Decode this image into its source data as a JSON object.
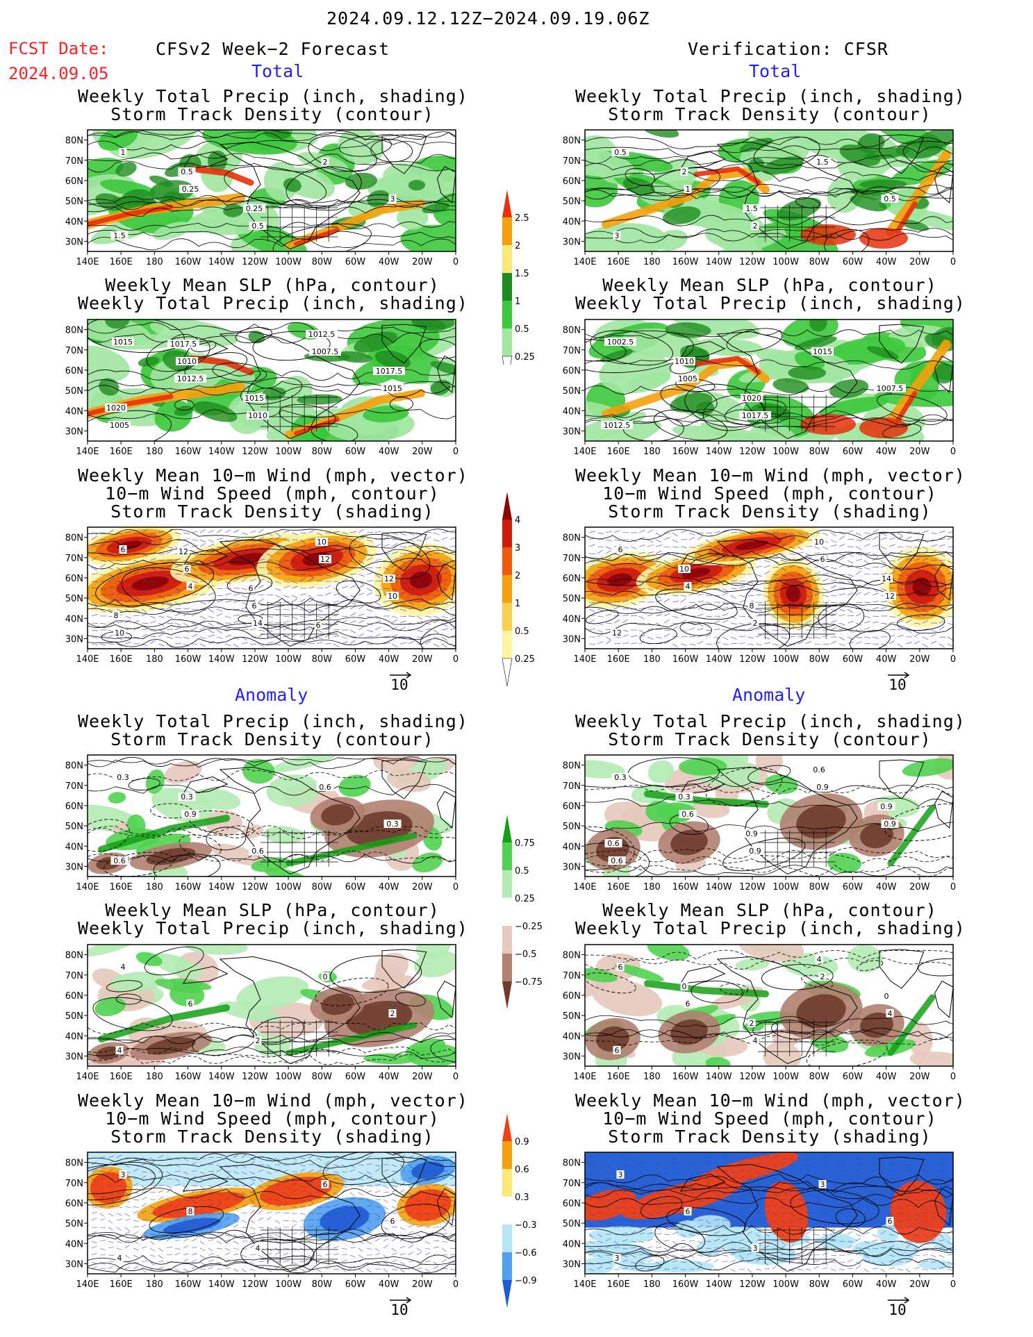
{
  "header": {
    "date_range": "2024.09.12.12Z−2024.09.19.06Z",
    "fcst_label": "FCST Date:",
    "fcst_date": "2024.09.05",
    "left_title": "CFSv2 Week−2 Forecast",
    "right_title": "Verification: CFSR"
  },
  "sections": {
    "total": "Total",
    "anomaly": "Anomaly"
  },
  "panel_titles": {
    "precip_storm": [
      "Weekly Total Precip (inch, shading)",
      "Storm Track Density (contour)"
    ],
    "slp_precip": [
      "Weekly Mean SLP (hPa, contour)",
      "Weekly Total Precip (inch, shading)"
    ],
    "wind_storm": [
      "Weekly Mean 10−m Wind (mph, vector)",
      "10−m Wind Speed (mph, contour)",
      "Storm Track Density (shading)"
    ]
  },
  "axes": {
    "lat_labels": [
      "80N",
      "70N",
      "60N",
      "50N",
      "40N",
      "30N"
    ],
    "lon_labels": [
      "140E",
      "160E",
      "180",
      "160W",
      "140W",
      "120W",
      "100W",
      "80W",
      "60W",
      "40W",
      "20W",
      "0"
    ]
  },
  "vector_reference": "10",
  "colorbars": {
    "precip_total": {
      "labels": [
        "2.5",
        "2",
        "1.5",
        "1",
        "0.5",
        "0.25"
      ],
      "colors": [
        "#e8300a",
        "#f5a00a",
        "#fde878",
        "#1e8c1e",
        "#3cc83c",
        "#a0e6a0"
      ]
    },
    "storm_total": {
      "labels": [
        "4",
        "3",
        "2",
        "1",
        "0.5",
        "0.25"
      ],
      "colors": [
        "#8b0000",
        "#d01a0a",
        "#f05a0a",
        "#f5a00a",
        "#fbd050",
        "#fdf4a0"
      ]
    },
    "precip_anom": {
      "labels": [
        "0.75",
        "0.5",
        "0.25",
        "−0.25",
        "−0.5",
        "−0.75"
      ],
      "colors": [
        "#14a014",
        "#50d250",
        "#b4ebb4",
        "#ffffff",
        "#e6c8bc",
        "#b08070",
        "#6e3c2c"
      ]
    },
    "storm_anom": {
      "labels": [
        "0.9",
        "0.6",
        "0.3",
        "−0.3",
        "−0.6",
        "−0.9"
      ],
      "colors": [
        "#f04016",
        "#f5a00a",
        "#fde878",
        "#ffffff",
        "#b4e6f5",
        "#50a0f0",
        "#1e5ad2"
      ]
    }
  },
  "map_labels": {
    "t_ps_f": [
      "1",
      "0.25",
      "0.5",
      "2",
      "3",
      "1.5",
      "0.5",
      "0.25"
    ],
    "t_ps_v": [
      "0.5",
      "1",
      "2",
      "1.5",
      "0.5",
      "3",
      "2",
      "1.5"
    ],
    "t_sl_f": [
      "1015",
      "1012.5",
      "1010",
      "1007.5",
      "1015",
      "1005",
      "1010",
      "1015",
      "1012.5",
      "1017.5",
      "1020",
      "1017.5"
    ],
    "t_sl_v": [
      "1002.5",
      "1005",
      "1017.5",
      "1015",
      "1007.5",
      "1012.5",
      "1010",
      "1020"
    ],
    "t_wd_f": [
      "6",
      "4",
      "14",
      "12",
      "10",
      "10",
      "6",
      "6",
      "10",
      "12",
      "8",
      "12",
      "6",
      "6"
    ],
    "t_wd_v": [
      "6",
      "4",
      "2",
      "6",
      "12",
      "12",
      "10",
      "8",
      "10",
      "14"
    ],
    "a_ps_f": [
      "0.3",
      "0.9",
      "0.6",
      "0.6",
      "0.3",
      "0.6",
      "0.3"
    ],
    "a_ps_v": [
      "0.3",
      "0.6",
      "0.9",
      "0.9",
      "0.9",
      "0.6",
      "0.3",
      "0.9",
      "0.6",
      "0.9",
      "0.6"
    ],
    "a_sl_f": [
      "4",
      "6",
      "2",
      "0",
      "2",
      "4"
    ],
    "a_sl_v": [
      "6",
      "6",
      "4",
      "2",
      "4",
      "6",
      "0",
      "2",
      "4",
      "0"
    ],
    "a_wd_f": [
      "3",
      "8",
      "4",
      "6",
      "6",
      "4"
    ],
    "a_wd_v": [
      "3",
      "6",
      "3",
      "3",
      "6",
      "3"
    ]
  }
}
